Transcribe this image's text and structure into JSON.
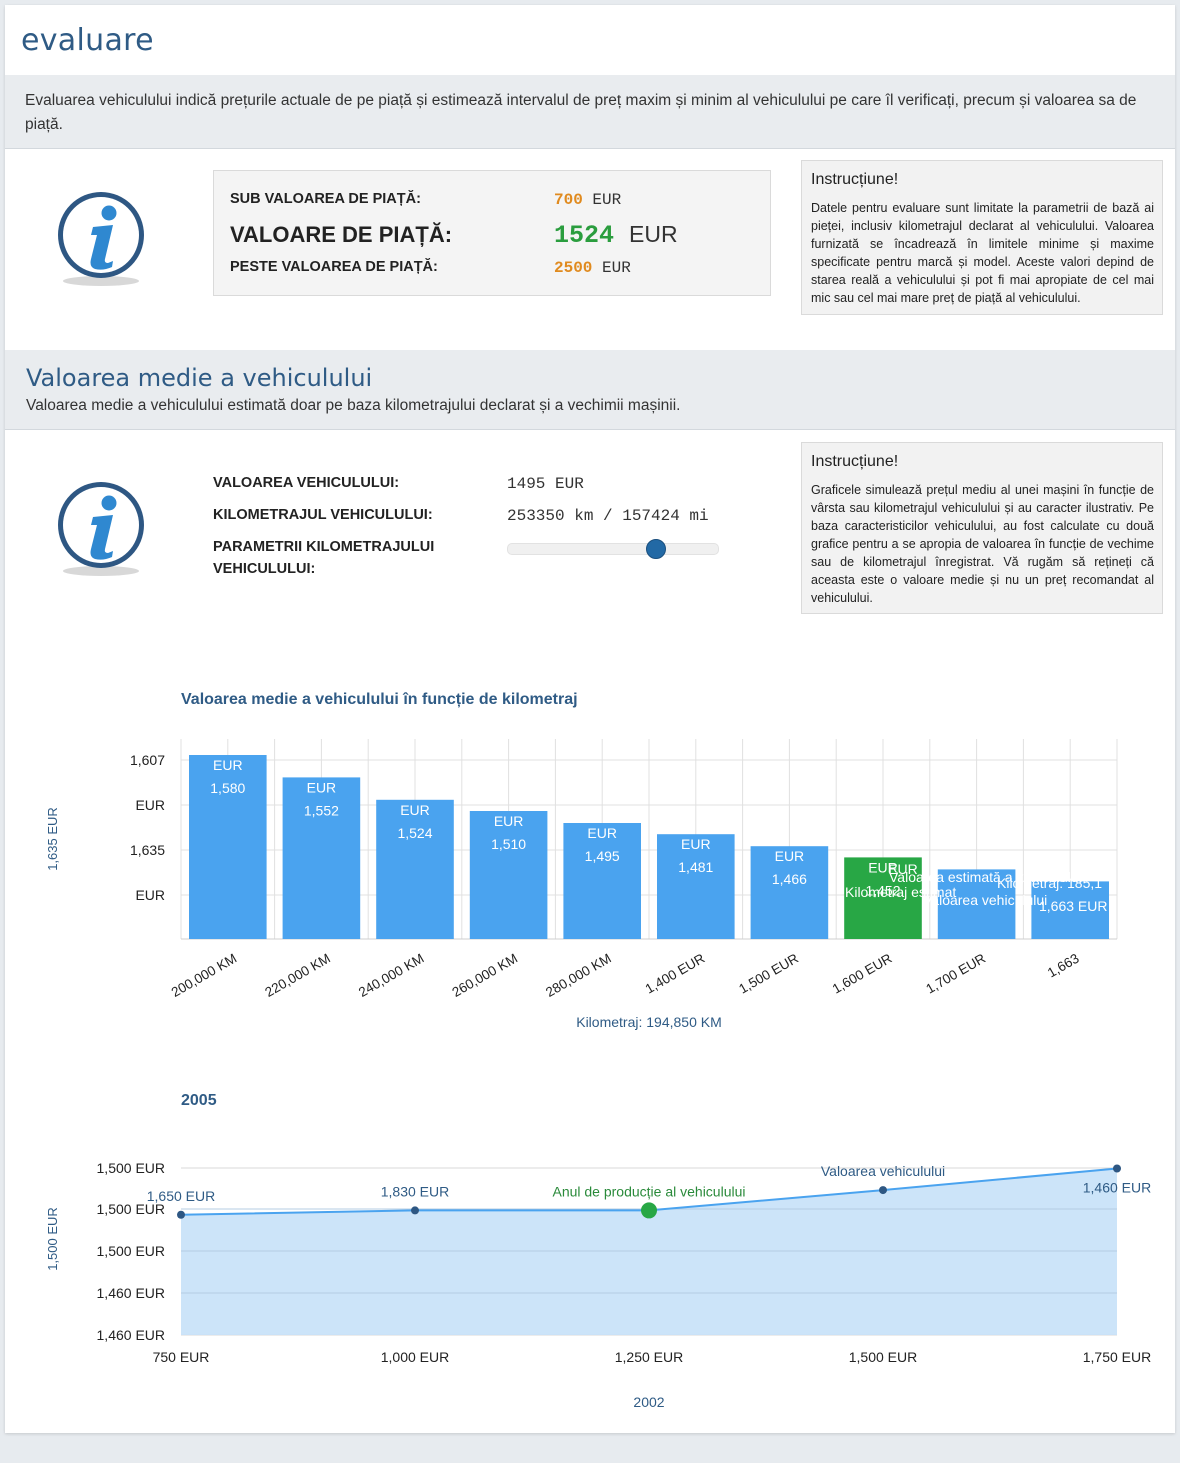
{
  "header": {
    "title": "evaluare"
  },
  "intro": {
    "text": "Evaluarea vehiculului indică prețurile actuale de pe piață și estimează intervalul de preț maxim și minim al vehiculului pe care îl verificați, precum și valoarea sa de piață."
  },
  "prices": {
    "below_label": "SUB VALOAREA DE PIAȚĂ:",
    "below_value": "700",
    "market_label": "VALOARE DE PIAȚĂ:",
    "market_value": "1524",
    "above_label": "PESTE VALOAREA DE PIAȚĂ:",
    "above_value": "2500",
    "currency": "EUR"
  },
  "instruction1": {
    "title": "Instrucțiune!",
    "text": "Datele pentru evaluare sunt limitate la parametrii de bază ai pieței, inclusiv kilometrajul declarat al vehiculului. Valoarea furnizată se încadrează în limitele minime și maxime specificate pentru marcă și model. Aceste valori depind de starea reală a vehiculului și pot fi mai apropiate de cel mai mic sau cel mai mare preț de piață al vehiculului."
  },
  "average": {
    "title": "Valoarea medie a vehiculului",
    "subtitle": "Valoarea medie a vehiculului estimată doar pe baza kilometrajului declarat și a vechimii mașinii.",
    "value_label": "VALOAREA VEHICULULUI:",
    "value": "1495 EUR",
    "mileage_label": "KILOMETRAJUL VEHICULULUI:",
    "mileage": "253350 km / 157424 mi",
    "params_label_1": "PARAMETRII KILOMETRAJULUI",
    "params_label_2": "VEHICULULUI:",
    "slider_position": 0.7
  },
  "instruction2": {
    "title": "Instrucțiune!",
    "text": "Graficele simulează prețul mediu al unei mașini în funcție de vârsta sau kilometrajul vehiculului și au caracter ilustrativ. Pe baza caracteristicilor vehiculului, au fost calculate cu două grafice pentru a se apropia de valoarea în funcție de vechime sau de kilometrajul înregistrat. Vă rugăm să rețineți că aceasta este o valoare medie și nu un preț recomandat al vehiculului."
  },
  "colors": {
    "accent": "#2f5b85",
    "bar": "#4aa3ef",
    "highlight": "#28a745",
    "orange": "#e08a1e",
    "green": "#2a9d3e"
  },
  "chart_data": [
    {
      "type": "bar",
      "title": "Valoarea medie a vehiculului în funcție de kilometraj",
      "categories": [
        "200,000 KM",
        "220,000 KM",
        "240,000 KM",
        "260,000 KM",
        "280,000 KM",
        "1,400 EUR",
        "1,500 EUR",
        "1,600 EUR",
        "1,700 EUR",
        "1,663"
      ],
      "values": [
        1580,
        1552,
        1524,
        1510,
        1495,
        1481,
        1466,
        1452,
        1437,
        1422
      ],
      "data_labels": [
        "1,580",
        "1,552",
        "1,524",
        "1,510",
        "1,495",
        "1,481",
        "1,466",
        "1,452",
        "",
        ""
      ],
      "label_unit": "EUR",
      "highlight_index": 7,
      "y_ticks": [
        "1,607",
        "EUR",
        "1,635",
        "EUR"
      ],
      "ylim": [
        1350,
        1600
      ],
      "ylabel": "1,635 EUR",
      "xlabel": "Kilometraj: 194,850 KM",
      "overlay_texts": [
        "Kilometraj estimat",
        "Valoarea estimată a vehiculului",
        "Valoarea vehiculului",
        "Kilometraj: 185,1",
        "1,663 EUR",
        "EUR"
      ]
    },
    {
      "type": "area",
      "title": "2005",
      "x_ticks": [
        "750 EUR",
        "1,000 EUR",
        "1,250 EUR",
        "1,500 EUR",
        "1,750 EUR"
      ],
      "y_ticks": [
        "1,500 EUR",
        "1,500 EUR",
        "1,500 EUR",
        "1,460 EUR",
        "1,460 EUR"
      ],
      "points": [
        {
          "x": 750,
          "y": 1495,
          "label": "1,650 EUR"
        },
        {
          "x": 1000,
          "y": 1502,
          "label": "1,830 EUR"
        },
        {
          "x": 1250,
          "y": 1502,
          "label": "Anul de producție al vehiculului",
          "highlight": true
        },
        {
          "x": 1500,
          "y": 1535,
          "label": "Valoarea vehiculului"
        },
        {
          "x": 1750,
          "y": 1570,
          "label": "1,460 EUR"
        }
      ],
      "xlim": [
        750,
        1750
      ],
      "ylim": [
        1300,
        1600
      ],
      "ylabel": "1,500 EUR",
      "xlabel": "2002"
    }
  ]
}
